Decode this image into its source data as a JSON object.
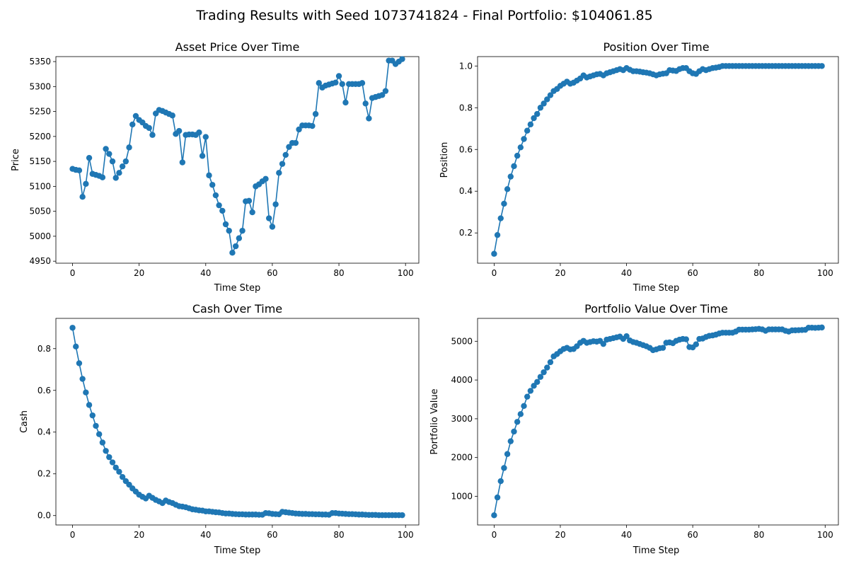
{
  "figure": {
    "suptitle": "Trading Results with Seed 1073741824 - Final Portfolio: $104061.85"
  },
  "colors": {
    "series": "#1f77b4"
  },
  "chart_data": [
    {
      "type": "line",
      "title": "Asset Price Over Time",
      "xlabel": "Time Step",
      "ylabel": "Price",
      "xlim": [
        -5,
        104
      ],
      "ylim": [
        4946,
        5360
      ],
      "xticks": [
        "0",
        "20",
        "40",
        "60",
        "80",
        "100"
      ],
      "xtick_values": [
        0,
        20,
        40,
        60,
        80,
        100
      ],
      "yticks": [
        "4950",
        "5000",
        "5050",
        "5100",
        "5150",
        "5200",
        "5250",
        "5300",
        "5350"
      ],
      "ytick_values": [
        4950,
        5000,
        5050,
        5100,
        5150,
        5200,
        5250,
        5300,
        5350
      ],
      "marker": "circle",
      "x": [
        0,
        1,
        2,
        3,
        4,
        5,
        6,
        7,
        8,
        9,
        10,
        11,
        12,
        13,
        14,
        15,
        16,
        17,
        18,
        19,
        20,
        21,
        22,
        23,
        24,
        25,
        26,
        27,
        28,
        29,
        30,
        31,
        32,
        33,
        34,
        35,
        36,
        37,
        38,
        39,
        40,
        41,
        42,
        43,
        44,
        45,
        46,
        47,
        48,
        49,
        50,
        51,
        52,
        53,
        54,
        55,
        56,
        57,
        58,
        59,
        60,
        61,
        62,
        63,
        64,
        65,
        66,
        67,
        68,
        69,
        70,
        71,
        72,
        73,
        74,
        75,
        76,
        77,
        78,
        79,
        80,
        81,
        82,
        83,
        84,
        85,
        86,
        87,
        88,
        89,
        90,
        91,
        92,
        93,
        94,
        95,
        96,
        97,
        98,
        99
      ],
      "y": [
        5135,
        5133,
        5132,
        5079,
        5105,
        5157,
        5125,
        5123,
        5121,
        5118,
        5175,
        5165,
        5150,
        5117,
        5127,
        5140,
        5150,
        5178,
        5224,
        5241,
        5233,
        5228,
        5221,
        5217,
        5203,
        5246,
        5253,
        5251,
        5248,
        5245,
        5242,
        5205,
        5211,
        5148,
        5203,
        5204,
        5204,
        5203,
        5208,
        5161,
        5199,
        5122,
        5103,
        5082,
        5062,
        5051,
        5024,
        5011,
        4967,
        4980,
        4996,
        5011,
        5070,
        5071,
        5048,
        5100,
        5104,
        5110,
        5115,
        5036,
        5019,
        5064,
        5127,
        5145,
        5163,
        5179,
        5187,
        5187,
        5214,
        5222,
        5222,
        5222,
        5221,
        5245,
        5307,
        5298,
        5302,
        5304,
        5306,
        5308,
        5321,
        5305,
        5268,
        5305,
        5305,
        5305,
        5305,
        5307,
        5266,
        5236,
        5277,
        5279,
        5281,
        5283,
        5291,
        5352,
        5352,
        5345,
        5350,
        5355
      ]
    },
    {
      "type": "line",
      "title": "Position Over Time",
      "xlabel": "Time Step",
      "ylabel": "Position",
      "xlim": [
        -5,
        104
      ],
      "ylim": [
        0.055,
        1.045
      ],
      "xticks": [
        "0",
        "20",
        "40",
        "60",
        "80",
        "100"
      ],
      "xtick_values": [
        0,
        20,
        40,
        60,
        80,
        100
      ],
      "yticks": [
        "0.2",
        "0.4",
        "0.6",
        "0.8",
        "1.0"
      ],
      "ytick_values": [
        0.2,
        0.4,
        0.6,
        0.8,
        1.0
      ],
      "marker": "circle",
      "x": [
        0,
        1,
        2,
        3,
        4,
        5,
        6,
        7,
        8,
        9,
        10,
        11,
        12,
        13,
        14,
        15,
        16,
        17,
        18,
        19,
        20,
        21,
        22,
        23,
        24,
        25,
        26,
        27,
        28,
        29,
        30,
        31,
        32,
        33,
        34,
        35,
        36,
        37,
        38,
        39,
        40,
        41,
        42,
        43,
        44,
        45,
        46,
        47,
        48,
        49,
        50,
        51,
        52,
        53,
        54,
        55,
        56,
        57,
        58,
        59,
        60,
        61,
        62,
        63,
        64,
        65,
        66,
        67,
        68,
        69,
        70,
        71,
        72,
        73,
        74,
        75,
        76,
        77,
        78,
        79,
        80,
        81,
        82,
        83,
        84,
        85,
        86,
        87,
        88,
        89,
        90,
        91,
        92,
        93,
        94,
        95,
        96,
        97,
        98,
        99
      ],
      "y": [
        0.1,
        0.19,
        0.27,
        0.34,
        0.41,
        0.47,
        0.52,
        0.57,
        0.61,
        0.65,
        0.69,
        0.72,
        0.75,
        0.77,
        0.8,
        0.82,
        0.84,
        0.86,
        0.88,
        0.89,
        0.905,
        0.915,
        0.925,
        0.915,
        0.92,
        0.93,
        0.94,
        0.955,
        0.945,
        0.95,
        0.955,
        0.96,
        0.962,
        0.955,
        0.965,
        0.97,
        0.975,
        0.98,
        0.985,
        0.98,
        0.99,
        0.982,
        0.975,
        0.975,
        0.973,
        0.97,
        0.968,
        0.965,
        0.96,
        0.955,
        0.96,
        0.963,
        0.965,
        0.98,
        0.978,
        0.976,
        0.985,
        0.99,
        0.99,
        0.975,
        0.965,
        0.962,
        0.975,
        0.985,
        0.98,
        0.985,
        0.99,
        0.992,
        0.995,
        1.0,
        1.0,
        1.0,
        1.0,
        1.0,
        1.0,
        1.0,
        1.0,
        1.0,
        1.0,
        1.0,
        1.0,
        1.0,
        1.0,
        1.0,
        1.0,
        1.0,
        1.0,
        1.0,
        1.0,
        1.0,
        1.0,
        1.0,
        1.0,
        1.0,
        1.0,
        1.0,
        1.0,
        1.0,
        1.0,
        1.0
      ]
    },
    {
      "type": "line",
      "title": "Cash Over Time",
      "xlabel": "Time Step",
      "ylabel": "Cash",
      "xlim": [
        -5,
        104
      ],
      "ylim": [
        -0.045,
        0.945
      ],
      "xticks": [
        "0",
        "20",
        "40",
        "60",
        "80",
        "100"
      ],
      "xtick_values": [
        0,
        20,
        40,
        60,
        80,
        100
      ],
      "yticks": [
        "0.0",
        "0.2",
        "0.4",
        "0.6",
        "0.8"
      ],
      "ytick_values": [
        0.0,
        0.2,
        0.4,
        0.6,
        0.8
      ],
      "marker": "circle",
      "x": [
        0,
        1,
        2,
        3,
        4,
        5,
        6,
        7,
        8,
        9,
        10,
        11,
        12,
        13,
        14,
        15,
        16,
        17,
        18,
        19,
        20,
        21,
        22,
        23,
        24,
        25,
        26,
        27,
        28,
        29,
        30,
        31,
        32,
        33,
        34,
        35,
        36,
        37,
        38,
        39,
        40,
        41,
        42,
        43,
        44,
        45,
        46,
        47,
        48,
        49,
        50,
        51,
        52,
        53,
        54,
        55,
        56,
        57,
        58,
        59,
        60,
        61,
        62,
        63,
        64,
        65,
        66,
        67,
        68,
        69,
        70,
        71,
        72,
        73,
        74,
        75,
        76,
        77,
        78,
        79,
        80,
        81,
        82,
        83,
        84,
        85,
        86,
        87,
        88,
        89,
        90,
        91,
        92,
        93,
        94,
        95,
        96,
        97,
        98,
        99
      ],
      "y": [
        0.9,
        0.81,
        0.73,
        0.655,
        0.59,
        0.53,
        0.48,
        0.43,
        0.39,
        0.35,
        0.31,
        0.28,
        0.255,
        0.23,
        0.21,
        0.185,
        0.165,
        0.148,
        0.13,
        0.115,
        0.1,
        0.09,
        0.082,
        0.095,
        0.085,
        0.075,
        0.068,
        0.06,
        0.072,
        0.065,
        0.06,
        0.052,
        0.045,
        0.043,
        0.04,
        0.035,
        0.03,
        0.028,
        0.025,
        0.024,
        0.02,
        0.02,
        0.018,
        0.016,
        0.015,
        0.012,
        0.01,
        0.01,
        0.008,
        0.007,
        0.006,
        0.006,
        0.005,
        0.005,
        0.005,
        0.005,
        0.004,
        0.004,
        0.012,
        0.011,
        0.008,
        0.007,
        0.006,
        0.018,
        0.016,
        0.014,
        0.012,
        0.01,
        0.009,
        0.008,
        0.008,
        0.007,
        0.007,
        0.006,
        0.006,
        0.005,
        0.005,
        0.004,
        0.012,
        0.012,
        0.01,
        0.009,
        0.008,
        0.007,
        0.007,
        0.006,
        0.005,
        0.005,
        0.004,
        0.003,
        0.003,
        0.003,
        0.002,
        0.002,
        0.002,
        0.002,
        0.002,
        0.002,
        0.002,
        0.002
      ]
    },
    {
      "type": "line",
      "title": "Portfolio Value Over Time",
      "xlabel": "Time Step",
      "ylabel": "Portfolio Value",
      "xlim": [
        -5,
        104
      ],
      "ylim": [
        260,
        5590
      ],
      "xticks": [
        "0",
        "20",
        "40",
        "60",
        "80",
        "100"
      ],
      "xtick_values": [
        0,
        20,
        40,
        60,
        80,
        100
      ],
      "yticks": [
        "1000",
        "2000",
        "3000",
        "4000",
        "5000"
      ],
      "ytick_values": [
        1000,
        2000,
        3000,
        4000,
        5000
      ],
      "marker": "circle",
      "x": [
        0,
        1,
        2,
        3,
        4,
        5,
        6,
        7,
        8,
        9,
        10,
        11,
        12,
        13,
        14,
        15,
        16,
        17,
        18,
        19,
        20,
        21,
        22,
        23,
        24,
        25,
        26,
        27,
        28,
        29,
        30,
        31,
        32,
        33,
        34,
        35,
        36,
        37,
        38,
        39,
        40,
        41,
        42,
        43,
        44,
        45,
        46,
        47,
        48,
        49,
        50,
        51,
        52,
        53,
        54,
        55,
        56,
        57,
        58,
        59,
        60,
        61,
        62,
        63,
        64,
        65,
        66,
        67,
        68,
        69,
        70,
        71,
        72,
        73,
        74,
        75,
        76,
        77,
        78,
        79,
        80,
        81,
        82,
        83,
        84,
        85,
        86,
        87,
        88,
        89,
        90,
        91,
        92,
        93,
        94,
        95,
        96,
        97,
        98,
        99
      ],
      "y": [
        510,
        970,
        1390,
        1730,
        2090,
        2420,
        2670,
        2920,
        3120,
        3330,
        3570,
        3720,
        3850,
        3950,
        4080,
        4200,
        4320,
        4460,
        4610,
        4670,
        4740,
        4800,
        4830,
        4790,
        4800,
        4870,
        4960,
        5010,
        4960,
        4980,
        5000,
        4990,
        5010,
        4930,
        5040,
        5060,
        5080,
        5100,
        5120,
        5060,
        5130,
        5020,
        4980,
        4960,
        4930,
        4900,
        4870,
        4830,
        4770,
        4790,
        4820,
        4830,
        4960,
        4970,
        4950,
        5010,
        5040,
        5060,
        5050,
        4850,
        4840,
        4920,
        5060,
        5070,
        5110,
        5140,
        5150,
        5170,
        5200,
        5220,
        5220,
        5220,
        5220,
        5250,
        5300,
        5300,
        5300,
        5300,
        5305,
        5310,
        5320,
        5305,
        5270,
        5305,
        5305,
        5305,
        5305,
        5305,
        5270,
        5250,
        5280,
        5282,
        5285,
        5290,
        5295,
        5350,
        5350,
        5345,
        5350,
        5355
      ]
    }
  ]
}
